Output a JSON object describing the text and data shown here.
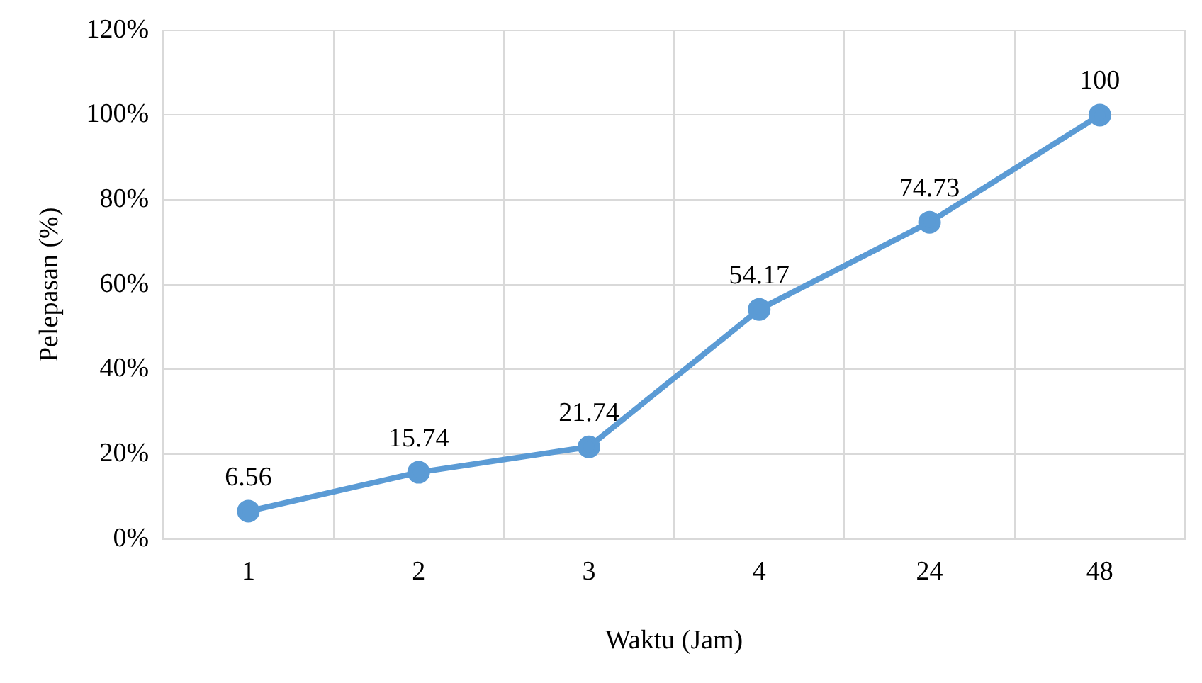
{
  "chart_data": {
    "type": "line",
    "xlabel": "Waktu (Jam)",
    "ylabel": "Pelepasan (%)",
    "categories": [
      "1",
      "2",
      "3",
      "4",
      "24",
      "48"
    ],
    "series": [
      {
        "color": "#5b9bd5",
        "values": [
          6.56,
          15.74,
          21.74,
          54.17,
          74.73,
          100
        ]
      }
    ],
    "ylim": [
      0,
      120
    ],
    "yticks": [
      {
        "value": 0,
        "label": "0%"
      },
      {
        "value": 20,
        "label": "20%"
      },
      {
        "value": 40,
        "label": "40%"
      },
      {
        "value": 60,
        "label": "60%"
      },
      {
        "value": 80,
        "label": "80%"
      },
      {
        "value": 100,
        "label": "100%"
      },
      {
        "value": 120,
        "label": "120%"
      }
    ],
    "grid": true,
    "legend": false,
    "marker": "circle",
    "line_style": "solid",
    "data_labels": true
  }
}
